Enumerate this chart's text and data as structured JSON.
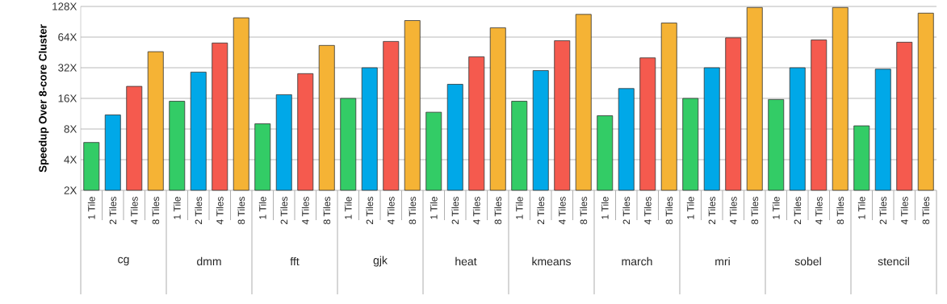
{
  "chart_data": {
    "type": "bar",
    "ylabel": "Speedup Over 8-core Cluster",
    "log": "y",
    "grid": "y",
    "ylim": [
      2,
      128
    ],
    "yticks": [
      {
        "value": 2,
        "label": "2X"
      },
      {
        "value": 4,
        "label": "4X"
      },
      {
        "value": 8,
        "label": "8X"
      },
      {
        "value": 16,
        "label": "16X"
      },
      {
        "value": 32,
        "label": "32X"
      },
      {
        "value": 64,
        "label": "64X"
      },
      {
        "value": 128,
        "label": "128X"
      }
    ],
    "categories": [
      "cg",
      "dmm",
      "fft",
      "gjk",
      "heat",
      "kmeans",
      "march",
      "mri",
      "sobel",
      "stencil"
    ],
    "series": [
      {
        "name": "1 Tile",
        "color": "#33cc66",
        "values": [
          5.9,
          15,
          9.0,
          16,
          11.7,
          15,
          10.8,
          16,
          15.6,
          8.6
        ]
      },
      {
        "name": "2 Tiles",
        "color": "#00a8e8",
        "values": [
          11,
          29,
          17.4,
          32,
          22,
          30,
          20,
          32,
          32,
          31
        ]
      },
      {
        "name": "4 Tiles",
        "color": "#f55a4e",
        "values": [
          21,
          56,
          28,
          58,
          41,
          59,
          40,
          63,
          60,
          57
        ]
      },
      {
        "name": "8 Tiles",
        "color": "#f5b335",
        "values": [
          46,
          99,
          53,
          93,
          79,
          107,
          88,
          125,
          125,
          110
        ]
      }
    ]
  }
}
